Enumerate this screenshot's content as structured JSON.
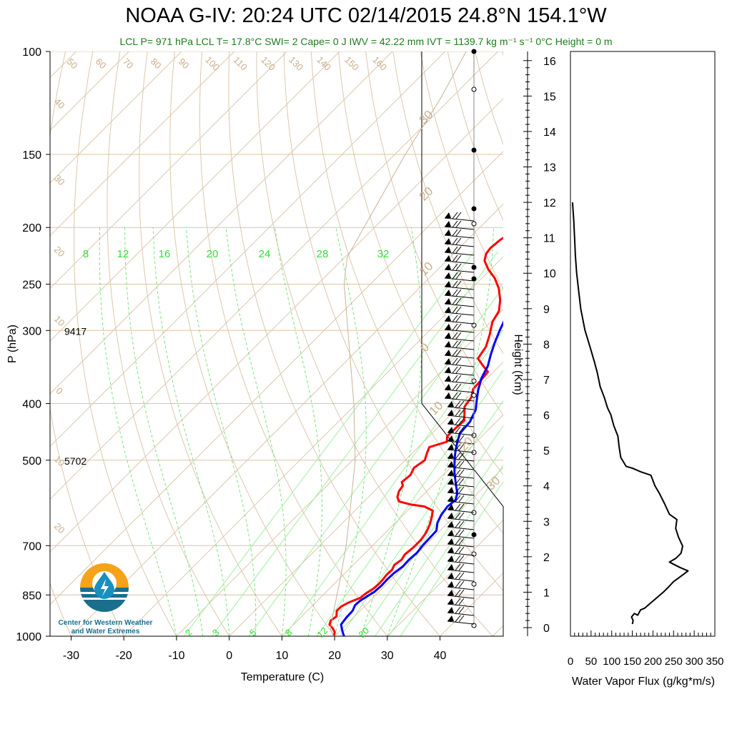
{
  "title": "NOAA G-IV: 20:24 UTC 02/14/2015  24.8°N 154.1°W",
  "subtitle": "LCL P= 971 hPa  LCL T= 17.8°C  SWI= 2  Cape= 0 J  IWV = 42.22 mm  IVT = 1139.7 kg m⁻¹ s⁻¹  0°C Height = 0 m",
  "logo": {
    "line1": "Center for Western Weather",
    "line2": "and Water Extremes"
  },
  "chart_data": [
    {
      "type": "line",
      "chart": "skew-t",
      "xlabel": "Temperature (C)",
      "ylabel": "P (hPa)",
      "xlim": [
        -34,
        52
      ],
      "ylim": [
        1000,
        100
      ],
      "x_ticks": [
        -30,
        -20,
        -10,
        0,
        10,
        20,
        30,
        40
      ],
      "y_ticks": [
        100,
        150,
        200,
        250,
        300,
        400,
        500,
        700,
        850,
        1000
      ],
      "height_labels": [
        {
          "p": 300,
          "text": "9417"
        },
        {
          "p": 500,
          "text": "5702"
        }
      ],
      "mixing_ratio_top_labels": [
        "8",
        "12",
        "16",
        "20",
        "24",
        "28",
        "32"
      ],
      "mixing_ratio_bottom_labels": [
        "2",
        "3",
        "5",
        "8",
        "12",
        "20"
      ],
      "dry_adiabat_labels": [
        "50",
        "60",
        "70",
        "80",
        "90",
        "100",
        "110",
        "120",
        "130",
        "140",
        "150",
        "160"
      ],
      "isotherm_left_labels": [
        "40",
        "30",
        "20",
        "10",
        "0",
        "10",
        "20"
      ],
      "isotherm_right_labels": [
        "30",
        "20",
        "10",
        "0",
        "10",
        "20",
        "30"
      ],
      "series": [
        {
          "name": "",
          "color": "#ff0000",
          "points": [
            [
              1000,
              19.8
            ],
            [
              985,
              19.3
            ],
            [
              970,
              18.2
            ],
            [
              955,
              16.8
            ],
            [
              940,
              16.3
            ],
            [
              925,
              16.6
            ],
            [
              905,
              15.6
            ],
            [
              890,
              15.6
            ],
            [
              875,
              16.3
            ],
            [
              860,
              17.6
            ],
            [
              845,
              17.8
            ],
            [
              830,
              18.3
            ],
            [
              815,
              18.5
            ],
            [
              800,
              18.4
            ],
            [
              785,
              18.2
            ],
            [
              770,
              18.3
            ],
            [
              755,
              17.8
            ],
            [
              740,
              18.2
            ],
            [
              725,
              17.8
            ],
            [
              705,
              18.1
            ],
            [
              685,
              18.1
            ],
            [
              665,
              17.7
            ],
            [
              645,
              16.9
            ],
            [
              625,
              15.8
            ],
            [
              610,
              14.8
            ],
            [
              600,
              12.4
            ],
            [
              595,
              9.3
            ],
            [
              588,
              6.6
            ],
            [
              578,
              5.5
            ],
            [
              565,
              4.7
            ],
            [
              553,
              4.4
            ],
            [
              545,
              3.5
            ],
            [
              530,
              3.8
            ],
            [
              515,
              3.1
            ],
            [
              500,
              3.7
            ],
            [
              485,
              2.7
            ],
            [
              475,
              2.1
            ],
            [
              465,
              4.4
            ],
            [
              455,
              3.4
            ],
            [
              440,
              3.5
            ],
            [
              428,
              3.7
            ],
            [
              418,
              2.6
            ],
            [
              405,
              1.1
            ],
            [
              390,
              0.6
            ],
            [
              378,
              -0.6
            ],
            [
              365,
              -0.8
            ],
            [
              353,
              -1.1
            ],
            [
              345,
              -3.1
            ],
            [
              335,
              -5.5
            ],
            [
              320,
              -6.2
            ],
            [
              305,
              -7.8
            ],
            [
              290,
              -9.7
            ],
            [
              278,
              -10.5
            ],
            [
              266,
              -12.4
            ],
            [
              254,
              -14.9
            ],
            [
              244,
              -17.6
            ],
            [
              236,
              -20.4
            ],
            [
              228,
              -22.8
            ],
            [
              222,
              -23.8
            ],
            [
              217,
              -24.1
            ],
            [
              210,
              -23.8
            ],
            [
              203,
              -22.8
            ],
            [
              196,
              -22.0
            ]
          ]
        },
        {
          "name": "",
          "color": "#0000ff",
          "points": [
            [
              1000,
              21.8
            ],
            [
              985,
              20.8
            ],
            [
              970,
              19.9
            ],
            [
              955,
              19.0
            ],
            [
              930,
              18.7
            ],
            [
              905,
              18.6
            ],
            [
              885,
              18.0
            ],
            [
              870,
              18.1
            ],
            [
              855,
              18.6
            ],
            [
              840,
              19.1
            ],
            [
              820,
              19.3
            ],
            [
              800,
              19.2
            ],
            [
              780,
              19.3
            ],
            [
              760,
              19.7
            ],
            [
              740,
              19.6
            ],
            [
              720,
              19.8
            ],
            [
              700,
              19.5
            ],
            [
              680,
              19.4
            ],
            [
              660,
              19.3
            ],
            [
              640,
              18.0
            ],
            [
              620,
              17.2
            ],
            [
              600,
              16.8
            ],
            [
              585,
              17.1
            ],
            [
              570,
              16.2
            ],
            [
              555,
              14.7
            ],
            [
              540,
              13.2
            ],
            [
              525,
              11.7
            ],
            [
              510,
              10.3
            ],
            [
              495,
              8.9
            ],
            [
              480,
              7.6
            ],
            [
              465,
              6.4
            ],
            [
              450,
              5.3
            ],
            [
              430,
              5.0
            ],
            [
              410,
              3.8
            ],
            [
              395,
              2.2
            ],
            [
              380,
              0.6
            ],
            [
              362,
              -1.1
            ],
            [
              345,
              -2.2
            ],
            [
              330,
              -3.8
            ],
            [
              315,
              -5.3
            ],
            [
              300,
              -6.7
            ],
            [
              285,
              -8.0
            ],
            [
              270,
              -9.4
            ],
            [
              255,
              -10.8
            ],
            [
              240,
              -12.2
            ],
            [
              228,
              -13.5
            ],
            [
              220,
              -13.5
            ],
            [
              212,
              -12.1
            ],
            [
              204,
              -11.2
            ],
            [
              196,
              -10.8
            ]
          ]
        },
        {
          "name": "",
          "color": "#c8b298",
          "points": [
            [
              1000,
              19.8
            ],
            [
              971,
              17.8
            ],
            [
              900,
              14.8
            ],
            [
              850,
              12.6
            ],
            [
              800,
              10.3
            ],
            [
              700,
              5.0
            ],
            [
              600,
              -1.6
            ],
            [
              500,
              -9.5
            ],
            [
              400,
              -20.5
            ],
            [
              300,
              -35.5
            ],
            [
              250,
              -45.0
            ],
            [
              225,
              -49.5
            ],
            [
              200,
              -52.0
            ],
            [
              150,
              -58.0
            ],
            [
              120,
              -62.0
            ],
            [
              100,
              -66.0
            ]
          ]
        }
      ]
    },
    {
      "type": "line",
      "chart": "water-vapor-flux-profile",
      "xlabel": "Water Vapor Flux (g/kg*m/s)",
      "ylabel": "Height (Km)",
      "xlim": [
        0,
        350
      ],
      "ylim": [
        0,
        16.5
      ],
      "x_ticks": [
        0,
        50,
        100,
        150,
        200,
        250,
        300,
        350
      ],
      "x_tick_labels": [
        "0",
        "50",
        "100",
        "150",
        "200",
        "250",
        "300",
        "350"
      ],
      "y_ticks": [
        0,
        1,
        2,
        3,
        4,
        5,
        6,
        7,
        8,
        9,
        10,
        11,
        12,
        13,
        14,
        15,
        16
      ],
      "points": [
        [
          150,
          0.1
        ],
        [
          152,
          0.2
        ],
        [
          148,
          0.3
        ],
        [
          155,
          0.4
        ],
        [
          163,
          0.35
        ],
        [
          170,
          0.5
        ],
        [
          180,
          0.55
        ],
        [
          195,
          0.7
        ],
        [
          210,
          0.85
        ],
        [
          225,
          1.0
        ],
        [
          238,
          1.15
        ],
        [
          250,
          1.3
        ],
        [
          262,
          1.4
        ],
        [
          285,
          1.6
        ],
        [
          265,
          1.7
        ],
        [
          240,
          1.85
        ],
        [
          255,
          1.95
        ],
        [
          268,
          2.1
        ],
        [
          272,
          2.3
        ],
        [
          262,
          2.55
        ],
        [
          255,
          2.8
        ],
        [
          258,
          3.05
        ],
        [
          240,
          3.2
        ],
        [
          228,
          3.5
        ],
        [
          215,
          3.8
        ],
        [
          205,
          4.0
        ],
        [
          195,
          4.3
        ],
        [
          170,
          4.4
        ],
        [
          150,
          4.5
        ],
        [
          135,
          4.55
        ],
        [
          122,
          4.8
        ],
        [
          118,
          5.1
        ],
        [
          115,
          5.4
        ],
        [
          105,
          5.7
        ],
        [
          98,
          6.0
        ],
        [
          90,
          6.2
        ],
        [
          82,
          6.5
        ],
        [
          72,
          6.8
        ],
        [
          65,
          7.2
        ],
        [
          58,
          7.5
        ],
        [
          48,
          7.9
        ],
        [
          35,
          8.4
        ],
        [
          25,
          9.0
        ],
        [
          20,
          9.5
        ],
        [
          15,
          10.0
        ],
        [
          12,
          10.5
        ],
        [
          10,
          11.0
        ],
        [
          8,
          11.5
        ],
        [
          5,
          12.0
        ]
      ]
    }
  ]
}
